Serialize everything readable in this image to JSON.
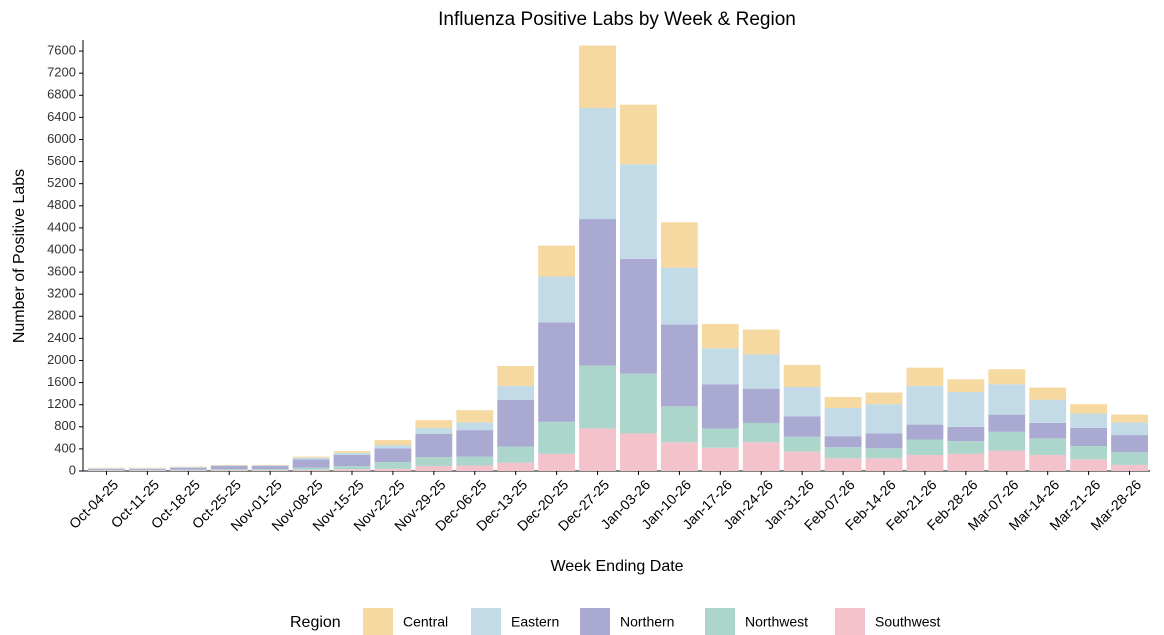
{
  "chart_data": {
    "type": "stacked_bar",
    "title": "Influenza Positive Labs by Week & Region",
    "x_label": "Week Ending Date",
    "y_label": "Number of Positive Labs",
    "legend_title": "Region",
    "categories": [
      "Oct-04-25",
      "Oct-11-25",
      "Oct-18-25",
      "Oct-25-25",
      "Nov-01-25",
      "Nov-08-25",
      "Nov-15-25",
      "Nov-22-25",
      "Nov-29-25",
      "Dec-06-25",
      "Dec-13-25",
      "Dec-20-25",
      "Dec-27-25",
      "Jan-03-26",
      "Jan-10-26",
      "Jan-17-26",
      "Jan-24-26",
      "Jan-31-26",
      "Feb-07-26",
      "Feb-14-26",
      "Feb-21-26",
      "Feb-28-26",
      "Mar-07-26",
      "Mar-14-26",
      "Mar-21-26",
      "Mar-28-26"
    ],
    "series": [
      {
        "name": "Central",
        "color": "#f5d9a0",
        "values": [
          10,
          10,
          10,
          10,
          10,
          20,
          30,
          90,
          140,
          220,
          360,
          560,
          1130,
          1080,
          820,
          440,
          450,
          400,
          200,
          210,
          330,
          230,
          270,
          220,
          170,
          140
        ]
      },
      {
        "name": "Eastern",
        "color": "#c3dbe6",
        "values": [
          10,
          10,
          10,
          10,
          10,
          30,
          40,
          60,
          110,
          140,
          250,
          830,
          2010,
          1710,
          1030,
          650,
          620,
          530,
          510,
          530,
          700,
          630,
          550,
          420,
          260,
          230
        ]
      },
      {
        "name": "Northern",
        "color": "#a9a9d2",
        "values": [
          20,
          20,
          35,
          55,
          55,
          150,
          200,
          250,
          420,
          480,
          850,
          1800,
          2650,
          2080,
          1480,
          800,
          620,
          370,
          200,
          270,
          270,
          260,
          310,
          280,
          330,
          310
        ]
      },
      {
        "name": "Northwest",
        "color": "#acd6cc",
        "values": [
          10,
          10,
          15,
          20,
          20,
          40,
          60,
          120,
          160,
          160,
          290,
          580,
          1140,
          1080,
          650,
          350,
          350,
          270,
          200,
          180,
          280,
          230,
          340,
          300,
          240,
          230
        ]
      },
      {
        "name": "Southwest",
        "color": "#f3c2cb",
        "values": [
          10,
          10,
          10,
          15,
          15,
          20,
          30,
          40,
          90,
          100,
          150,
          310,
          770,
          680,
          520,
          420,
          520,
          350,
          230,
          230,
          290,
          310,
          370,
          290,
          210,
          110
        ]
      }
    ],
    "ylim": [
      0,
      7800
    ],
    "yticks": [
      0,
      400,
      800,
      1200,
      1600,
      2000,
      2400,
      2800,
      3200,
      3600,
      4000,
      4400,
      4800,
      5200,
      5600,
      6000,
      6400,
      6800,
      7200,
      7600
    ],
    "grid": false
  }
}
